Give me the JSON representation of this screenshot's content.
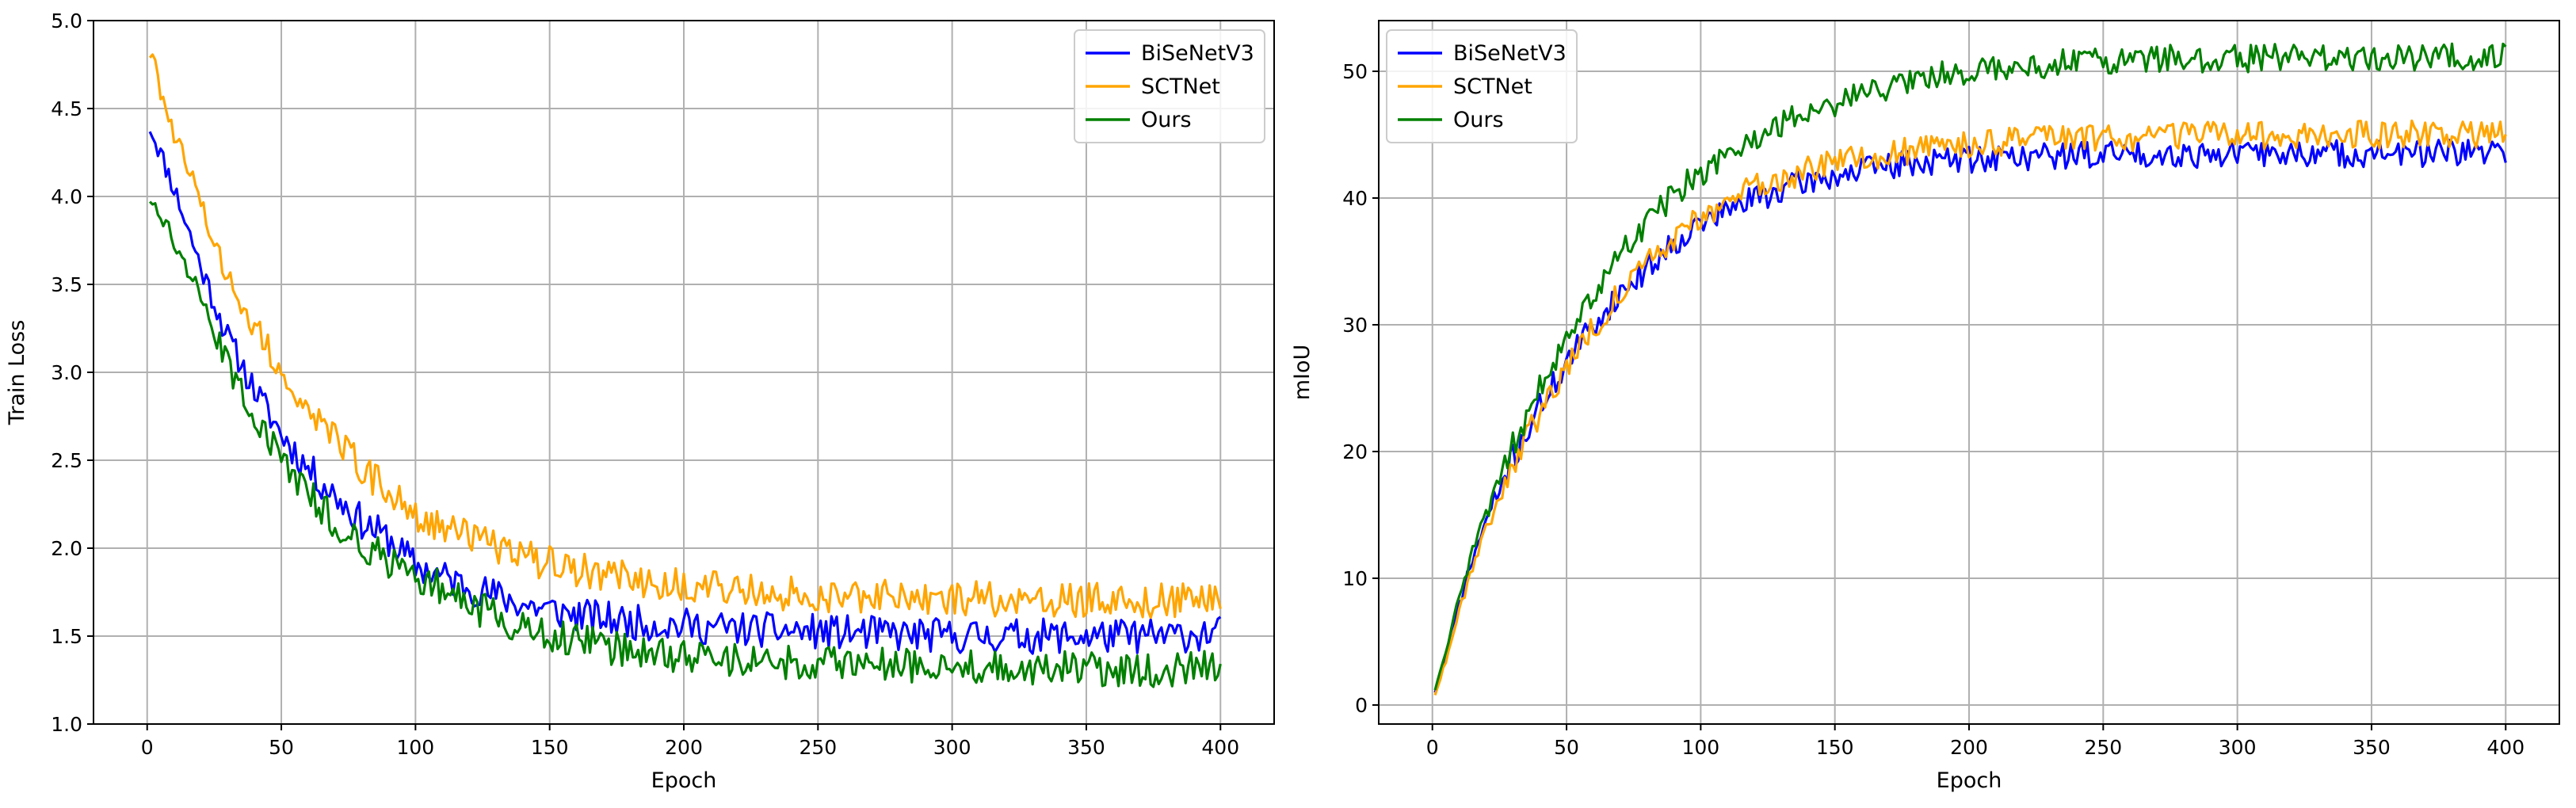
{
  "figure": {
    "charts_count": 2
  },
  "chart_data": [
    {
      "type": "line",
      "xlabel": "Epoch",
      "ylabel": "Train Loss",
      "xlim": [
        -20,
        420
      ],
      "ylim": [
        1.0,
        5.0
      ],
      "xticks": [
        0,
        50,
        100,
        150,
        200,
        250,
        300,
        350,
        400
      ],
      "yticks": [
        1.0,
        1.5,
        2.0,
        2.5,
        3.0,
        3.5,
        4.0,
        4.5,
        5.0
      ],
      "yticks_labels": [
        "1.0",
        "1.5",
        "2.0",
        "2.5",
        "3.0",
        "3.5",
        "4.0",
        "4.5",
        "5.0"
      ],
      "grid": true,
      "legend_position": "top-right",
      "series": [
        {
          "name": "BiSeNetV3",
          "color": "#0000ff",
          "x": [
            1,
            10,
            20,
            30,
            40,
            50,
            60,
            70,
            80,
            90,
            100,
            120,
            140,
            160,
            180,
            200,
            220,
            240,
            260,
            280,
            300,
            320,
            340,
            360,
            380,
            400
          ],
          "values": [
            4.4,
            4.05,
            3.6,
            3.2,
            2.9,
            2.65,
            2.45,
            2.3,
            2.15,
            2.05,
            1.9,
            1.78,
            1.68,
            1.62,
            1.58,
            1.56,
            1.54,
            1.53,
            1.52,
            1.51,
            1.5,
            1.5,
            1.5,
            1.5,
            1.5,
            1.52
          ]
        },
        {
          "name": "SCTNet",
          "color": "#ffa500",
          "x": [
            1,
            10,
            20,
            30,
            40,
            50,
            60,
            70,
            80,
            90,
            100,
            120,
            140,
            160,
            180,
            200,
            220,
            240,
            260,
            280,
            300,
            320,
            340,
            360,
            380,
            400
          ],
          "values": [
            4.82,
            4.35,
            3.95,
            3.55,
            3.25,
            3.0,
            2.8,
            2.62,
            2.45,
            2.32,
            2.2,
            2.06,
            1.95,
            1.88,
            1.83,
            1.79,
            1.76,
            1.74,
            1.73,
            1.72,
            1.72,
            1.71,
            1.71,
            1.7,
            1.7,
            1.7
          ]
        },
        {
          "name": "Ours",
          "color": "#008000",
          "x": [
            1,
            10,
            20,
            30,
            40,
            50,
            60,
            70,
            80,
            90,
            100,
            120,
            140,
            160,
            180,
            200,
            220,
            240,
            260,
            280,
            300,
            320,
            340,
            360,
            380,
            400
          ],
          "values": [
            4.0,
            3.75,
            3.4,
            3.05,
            2.75,
            2.5,
            2.3,
            2.15,
            2.02,
            1.93,
            1.85,
            1.68,
            1.55,
            1.47,
            1.42,
            1.38,
            1.36,
            1.35,
            1.34,
            1.33,
            1.32,
            1.32,
            1.32,
            1.31,
            1.31,
            1.32
          ]
        }
      ]
    },
    {
      "type": "line",
      "xlabel": "Epoch",
      "ylabel": "mIoU",
      "xlim": [
        -20,
        420
      ],
      "ylim": [
        -1.5,
        54
      ],
      "xticks": [
        0,
        50,
        100,
        150,
        200,
        250,
        300,
        350,
        400
      ],
      "yticks": [
        0,
        10,
        20,
        30,
        40,
        50
      ],
      "yticks_labels": [
        "0",
        "10",
        "20",
        "30",
        "40",
        "50"
      ],
      "grid": true,
      "legend_position": "top-left",
      "series": [
        {
          "name": "BiSeNetV3",
          "color": "#0000ff",
          "x": [
            1,
            5,
            10,
            15,
            20,
            30,
            40,
            50,
            60,
            70,
            80,
            90,
            100,
            120,
            140,
            160,
            180,
            200,
            220,
            240,
            260,
            280,
            300,
            320,
            340,
            360,
            380,
            400
          ],
          "values": [
            1.0,
            4.0,
            8.0,
            11.5,
            14.5,
            19.5,
            23.5,
            27.0,
            30.0,
            32.5,
            34.5,
            36.5,
            38.0,
            40.0,
            41.3,
            42.2,
            42.8,
            43.1,
            43.3,
            43.4,
            43.5,
            43.5,
            43.5,
            43.5,
            43.5,
            43.5,
            43.5,
            43.5
          ]
        },
        {
          "name": "SCTNet",
          "color": "#ffa500",
          "x": [
            1,
            5,
            10,
            15,
            20,
            30,
            40,
            50,
            60,
            70,
            80,
            90,
            100,
            120,
            140,
            160,
            180,
            200,
            220,
            240,
            260,
            280,
            300,
            320,
            340,
            360,
            380,
            400
          ],
          "values": [
            0.8,
            3.5,
            7.5,
            11.0,
            14.0,
            19.0,
            23.0,
            26.8,
            29.8,
            32.5,
            34.8,
            36.8,
            38.5,
            40.8,
            42.2,
            43.2,
            43.8,
            44.2,
            44.5,
            44.7,
            44.8,
            44.9,
            44.9,
            45.0,
            45.0,
            45.0,
            45.0,
            45.0
          ]
        },
        {
          "name": "Ours",
          "color": "#008000",
          "x": [
            1,
            5,
            10,
            15,
            20,
            30,
            40,
            50,
            60,
            70,
            80,
            90,
            100,
            120,
            140,
            160,
            180,
            200,
            220,
            240,
            260,
            280,
            300,
            320,
            340,
            360,
            380,
            400
          ],
          "values": [
            1.2,
            4.2,
            8.5,
            12.0,
            15.0,
            20.5,
            25.0,
            29.0,
            32.5,
            35.5,
            38.0,
            40.3,
            42.0,
            44.8,
            46.8,
            48.3,
            49.4,
            50.0,
            50.4,
            50.7,
            50.9,
            51.0,
            51.0,
            51.1,
            51.1,
            51.1,
            51.2,
            51.2
          ]
        }
      ]
    }
  ]
}
